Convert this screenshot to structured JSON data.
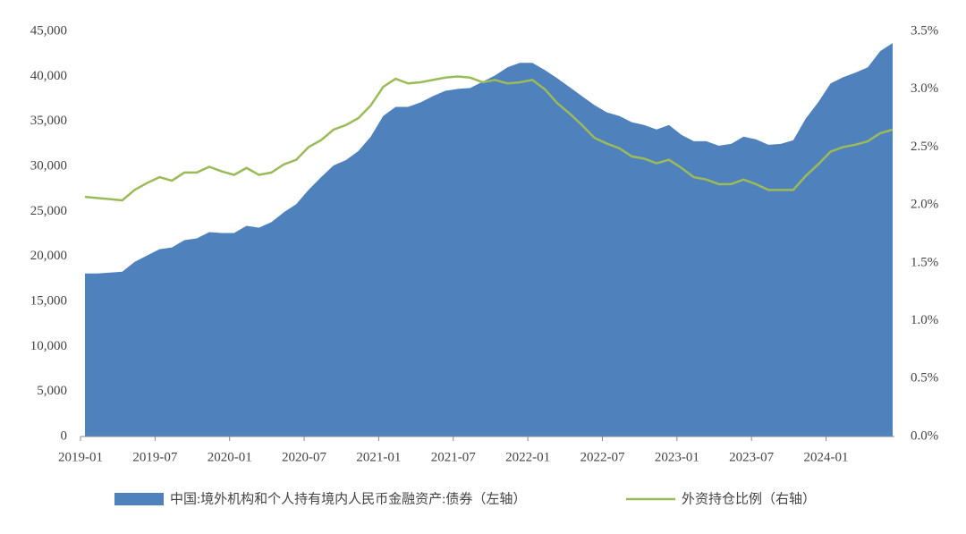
{
  "chart_data": {
    "type": "area-line",
    "categories": [
      "2019-01",
      null,
      null,
      null,
      null,
      null,
      "2019-07",
      null,
      null,
      null,
      null,
      null,
      "2020-01",
      null,
      null,
      null,
      null,
      null,
      "2020-07",
      null,
      null,
      null,
      null,
      null,
      "2021-01",
      null,
      null,
      null,
      null,
      null,
      "2021-07",
      null,
      null,
      null,
      null,
      null,
      "2022-01",
      null,
      null,
      null,
      null,
      null,
      "2022-07",
      null,
      null,
      null,
      null,
      null,
      "2023-01",
      null,
      null,
      null,
      null,
      null,
      "2023-07",
      null,
      null,
      null,
      null,
      null,
      "2024-01",
      null,
      null,
      null,
      null,
      null
    ],
    "series": [
      {
        "name": "中国:境外机构和个人持有境内人民币金融资产:债券（左轴）",
        "type": "area",
        "color": "#4f81bd",
        "values": [
          18100,
          18100,
          18200,
          18300,
          19400,
          20100,
          20800,
          21000,
          21800,
          22000,
          22700,
          22600,
          22600,
          23400,
          23200,
          23800,
          24900,
          25800,
          27400,
          28800,
          30100,
          30700,
          31700,
          33300,
          35600,
          36600,
          36600,
          37100,
          37800,
          38400,
          38600,
          38700,
          39400,
          40100,
          41000,
          41500,
          41500,
          40700,
          39800,
          38800,
          37800,
          36800,
          36000,
          35600,
          34900,
          34600,
          34100,
          34600,
          33500,
          32800,
          32800,
          32300,
          32500,
          33300,
          33000,
          32400,
          32500,
          32900,
          35300,
          37100,
          39200,
          39900,
          40400,
          41000,
          42800,
          43700
        ]
      },
      {
        "name": "外资持仓比例（右轴）",
        "type": "line",
        "axis": "y2",
        "color": "#9bbb59",
        "values": [
          2.07,
          2.06,
          2.05,
          2.04,
          2.13,
          2.19,
          2.24,
          2.21,
          2.28,
          2.28,
          2.33,
          2.29,
          2.26,
          2.32,
          2.26,
          2.28,
          2.35,
          2.39,
          2.5,
          2.56,
          2.65,
          2.69,
          2.75,
          2.86,
          3.02,
          3.09,
          3.05,
          3.06,
          3.08,
          3.1,
          3.11,
          3.1,
          3.06,
          3.08,
          3.05,
          3.06,
          3.08,
          3,
          2.88,
          2.79,
          2.69,
          2.58,
          2.53,
          2.49,
          2.42,
          2.4,
          2.36,
          2.39,
          2.32,
          2.24,
          2.22,
          2.18,
          2.18,
          2.22,
          2.18,
          2.13,
          2.13,
          2.13,
          2.25,
          2.35,
          2.46,
          2.5,
          2.52,
          2.55,
          2.62,
          2.65
        ]
      }
    ],
    "ylim": [
      0,
      45000
    ],
    "yticks": [
      0,
      {
        "value": 5000,
        "label": "5,000"
      },
      {
        "value": 10000,
        "label": "10,000"
      },
      {
        "value": 15000,
        "label": "15,000"
      },
      {
        "value": 20000,
        "label": "20,000"
      },
      {
        "value": 25000,
        "label": "25,000"
      },
      {
        "value": 30000,
        "label": "30,000"
      },
      {
        "value": 35000,
        "label": "35,000"
      },
      {
        "value": 40000,
        "label": "40,000"
      },
      {
        "value": 45000,
        "label": "45,000"
      }
    ],
    "y2lim": [
      0,
      3.5
    ],
    "y2ticks": [
      {
        "value": 0,
        "label": "0.0%"
      },
      {
        "value": 0.5,
        "label": "0.5%"
      },
      {
        "value": 1,
        "label": "1.0%"
      },
      {
        "value": 1.5,
        "label": "1.5%"
      },
      {
        "value": 2,
        "label": "2.0%"
      },
      {
        "value": 2.5,
        "label": "2.5%"
      },
      {
        "value": 3,
        "label": "3.0%"
      },
      {
        "value": 3.5,
        "label": "3.5%"
      }
    ],
    "grid": false,
    "legend": "bottom"
  }
}
